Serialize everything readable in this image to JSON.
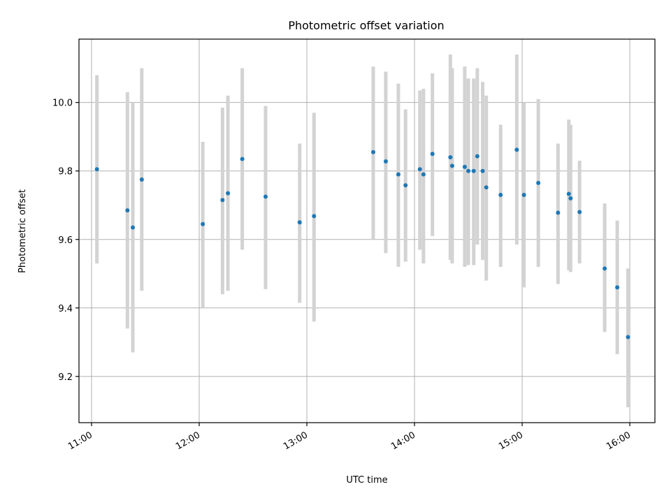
{
  "chart_data": {
    "type": "scatter",
    "title": "Photometric offset variation",
    "xlabel": "UTC time",
    "ylabel": "Photometric offset",
    "x_unit": "UTC time of day (HH:MM)",
    "xlim": [
      "10:53",
      "16:14"
    ],
    "ylim": [
      9.065,
      10.185
    ],
    "xticks": [
      "11:00",
      "12:00",
      "13:00",
      "14:00",
      "15:00",
      "16:00"
    ],
    "yticks": [
      9.2,
      9.4,
      9.6,
      9.8,
      10.0
    ],
    "ytick_labels": [
      "9.2",
      "9.4",
      "9.6",
      "9.8",
      "10.0"
    ],
    "grid": true,
    "point_color": "#1f77b4",
    "errorbar_color": "#d3d3d3",
    "points": [
      {
        "x": "11:03",
        "y": 9.805,
        "lo": 9.53,
        "hi": 10.08
      },
      {
        "x": "11:20",
        "y": 9.685,
        "lo": 9.34,
        "hi": 10.03
      },
      {
        "x": "11:23",
        "y": 9.635,
        "lo": 9.27,
        "hi": 10.0
      },
      {
        "x": "11:28",
        "y": 9.775,
        "lo": 9.45,
        "hi": 10.1
      },
      {
        "x": "12:02",
        "y": 9.645,
        "lo": 9.4,
        "hi": 9.885
      },
      {
        "x": "12:13",
        "y": 9.715,
        "lo": 9.44,
        "hi": 9.985
      },
      {
        "x": "12:16",
        "y": 9.735,
        "lo": 9.45,
        "hi": 10.02
      },
      {
        "x": "12:24",
        "y": 9.835,
        "lo": 9.57,
        "hi": 10.1
      },
      {
        "x": "12:37",
        "y": 9.725,
        "lo": 9.455,
        "hi": 9.99
      },
      {
        "x": "12:56",
        "y": 9.65,
        "lo": 9.415,
        "hi": 9.88
      },
      {
        "x": "13:04",
        "y": 9.668,
        "lo": 9.36,
        "hi": 9.97
      },
      {
        "x": "13:37",
        "y": 9.855,
        "lo": 9.6,
        "hi": 10.105
      },
      {
        "x": "13:44",
        "y": 9.828,
        "lo": 9.56,
        "hi": 10.09
      },
      {
        "x": "13:51",
        "y": 9.79,
        "lo": 9.52,
        "hi": 10.055
      },
      {
        "x": "13:55",
        "y": 9.758,
        "lo": 9.535,
        "hi": 9.98
      },
      {
        "x": "14:03",
        "y": 9.805,
        "lo": 9.57,
        "hi": 10.035
      },
      {
        "x": "14:05",
        "y": 9.79,
        "lo": 9.53,
        "hi": 10.04
      },
      {
        "x": "14:10",
        "y": 9.85,
        "lo": 9.61,
        "hi": 10.085
      },
      {
        "x": "14:20",
        "y": 9.84,
        "lo": 9.54,
        "hi": 10.14
      },
      {
        "x": "14:21",
        "y": 9.815,
        "lo": 9.53,
        "hi": 10.1
      },
      {
        "x": "14:28",
        "y": 9.812,
        "lo": 9.52,
        "hi": 10.105
      },
      {
        "x": "14:30",
        "y": 9.8,
        "lo": 9.525,
        "hi": 10.07
      },
      {
        "x": "14:33",
        "y": 9.8,
        "lo": 9.525,
        "hi": 10.07
      },
      {
        "x": "14:35",
        "y": 9.843,
        "lo": 9.585,
        "hi": 10.1
      },
      {
        "x": "14:38",
        "y": 9.8,
        "lo": 9.54,
        "hi": 10.06
      },
      {
        "x": "14:40",
        "y": 9.752,
        "lo": 9.48,
        "hi": 10.02
      },
      {
        "x": "14:48",
        "y": 9.73,
        "lo": 9.52,
        "hi": 9.935
      },
      {
        "x": "14:57",
        "y": 9.862,
        "lo": 9.585,
        "hi": 10.14
      },
      {
        "x": "15:01",
        "y": 9.73,
        "lo": 9.46,
        "hi": 10.0
      },
      {
        "x": "15:09",
        "y": 9.765,
        "lo": 9.52,
        "hi": 10.01
      },
      {
        "x": "15:20",
        "y": 9.678,
        "lo": 9.47,
        "hi": 9.88
      },
      {
        "x": "15:26",
        "y": 9.733,
        "lo": 9.51,
        "hi": 9.95
      },
      {
        "x": "15:27",
        "y": 9.72,
        "lo": 9.505,
        "hi": 9.935
      },
      {
        "x": "15:32",
        "y": 9.68,
        "lo": 9.53,
        "hi": 9.83
      },
      {
        "x": "15:46",
        "y": 9.515,
        "lo": 9.33,
        "hi": 9.705
      },
      {
        "x": "15:53",
        "y": 9.46,
        "lo": 9.265,
        "hi": 9.655
      },
      {
        "x": "15:59",
        "y": 9.315,
        "lo": 9.11,
        "hi": 9.515
      }
    ]
  }
}
